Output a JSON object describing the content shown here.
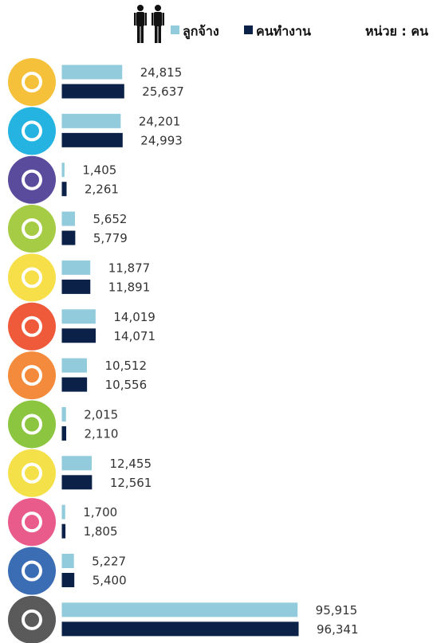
{
  "chart_data": {
    "type": "bar",
    "orientation": "horizontal",
    "subtitle": "หน่วย : คน",
    "categories": [
      null,
      null,
      null,
      null,
      null,
      null,
      null,
      null,
      null,
      null,
      null,
      null
    ],
    "series": [
      {
        "name": "ลูกจ้าง",
        "color": "#92cbdc",
        "values": [
          24815,
          24201,
          1405,
          5652,
          11877,
          14019,
          10512,
          2015,
          12455,
          1700,
          5227,
          95915
        ],
        "value_labels": [
          "24,815",
          "24,201",
          "1,405",
          "5,652",
          "11,877",
          "14,019",
          "10,512",
          "2,015",
          "12,455",
          "1,700",
          "5,227",
          "95,915"
        ]
      },
      {
        "name": "คนทำงาน",
        "color": "#0b2148",
        "values": [
          25637,
          24993,
          2261,
          5779,
          11891,
          14071,
          10556,
          2110,
          12561,
          1805,
          5400,
          96341
        ],
        "value_labels": [
          "25,637",
          "24,993",
          "2,261",
          "5,779",
          "11,891",
          "14,071",
          "10,556",
          "2,110",
          "12,561",
          "1,805",
          "5,400",
          "96,341"
        ]
      }
    ]
  }
}
